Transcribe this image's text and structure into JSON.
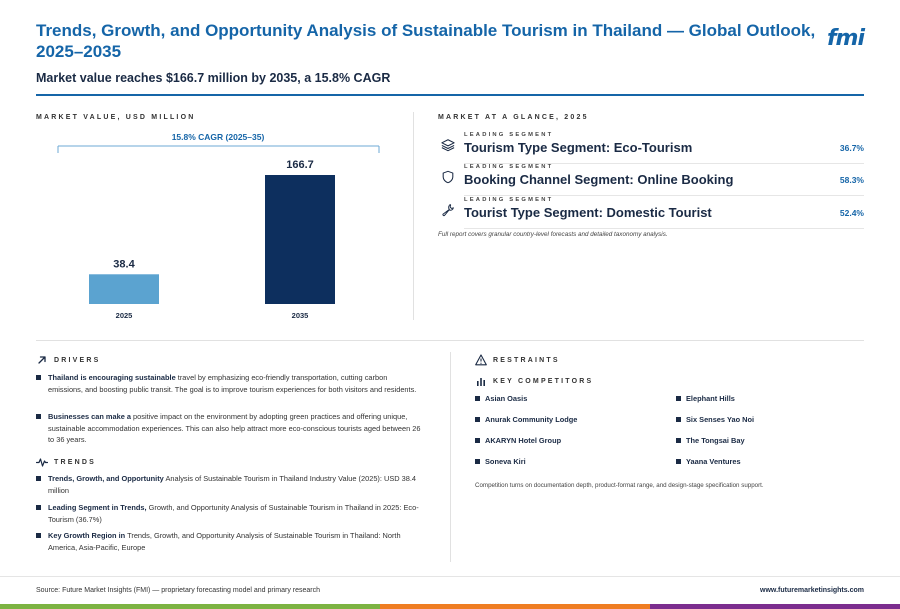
{
  "header": {
    "title": "Trends, Growth, and Opportunity Analysis of Sustainable Tourism in Thailand — Global Outlook, 2025–2035",
    "subtitle": "Market value reaches $166.7 million by 2035, a 15.8% CAGR",
    "logo": "fmi"
  },
  "sections": {
    "market_value": "MARKET VALUE, USD MILLION",
    "glance": "MARKET AT A GLANCE, 2025",
    "drivers": "DRIVERS",
    "restraints": "RESTRAINTS",
    "competitors": "KEY COMPETITORS",
    "trends": "TRENDS"
  },
  "chart_data": {
    "type": "bar",
    "categories": [
      "2025",
      "2035"
    ],
    "values": [
      38.4,
      166.7
    ],
    "value_labels": [
      "38.4",
      "166.7"
    ],
    "annotation": "15.8% CAGR (2025–35)",
    "colors": [
      "#5ba3d0",
      "#0d2f5e"
    ],
    "ylim": [
      0,
      180
    ]
  },
  "glance": {
    "items": [
      {
        "small": "LEADING SEGMENT",
        "name": "Tourism Type Segment: Eco-Tourism",
        "value": "36.7%",
        "icon": "layers-icon"
      },
      {
        "small": "LEADING SEGMENT",
        "name": "Booking Channel Segment: Online Booking",
        "value": "58.3%",
        "icon": "shield-icon"
      },
      {
        "small": "LEADING SEGMENT",
        "name": "Tourist Type Segment: Domestic Tourist",
        "value": "52.4%",
        "icon": "wrench-icon"
      }
    ],
    "note": "Full report covers granular country-level forecasts and detailed taxonomy analysis."
  },
  "drivers": [
    {
      "bold": "Thailand is encouraging sustainable",
      "rest": " travel by emphasizing eco-friendly transportation, cutting carbon emissions, and boosting public transit. The goal is to improve tourism experiences for both visitors and residents."
    },
    {
      "bold": "Businesses can make a",
      "rest": " positive impact on the environment by adopting green practices and offering unique, sustainable accommodation experiences. This can also help attract more eco-conscious tourists aged between 26 to 36 years."
    }
  ],
  "trends": [
    {
      "bold": "Trends, Growth, and Opportunity",
      "rest": " Analysis of Sustainable Tourism in Thailand Industry Value (2025): USD 38.4 million"
    },
    {
      "bold": "Leading Segment in Trends,",
      "rest": " Growth, and Opportunity Analysis of Sustainable Tourism in Thailand in 2025: Eco-Tourism (36.7%)"
    },
    {
      "bold": "Key Growth Region in",
      "rest": " Trends, Growth, and Opportunity Analysis of Sustainable Tourism in Thailand: North America, Asia-Pacific, Europe"
    }
  ],
  "competitors": {
    "left": [
      "Asian Oasis",
      "Anurak Community Lodge",
      "AKARYN Hotel Group",
      "Soneva Kiri"
    ],
    "right": [
      "Elephant Hills",
      "Six Senses Yao Noi",
      "The Tongsai Bay",
      "Yaana Ventures"
    ],
    "note": "Competition turns on documentation depth, product-format range, and design-stage specification support."
  },
  "footer": {
    "source": "Source: Future Market Insights (FMI) — proprietary forecasting model and primary research",
    "url": "www.futuremarketinsights.com"
  }
}
